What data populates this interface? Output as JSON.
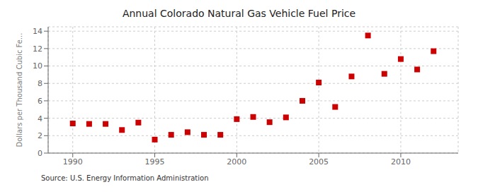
{
  "chart_data": {
    "type": "scatter",
    "title": "Annual Colorado Natural Gas Vehicle Fuel Price",
    "ylabel": "Dollars per Thousand Cubic Fe...",
    "source": "Source: U.S. Energy Information Administration",
    "x": [
      1990,
      1991,
      1992,
      1993,
      1994,
      1995,
      1996,
      1997,
      1998,
      1999,
      2000,
      2001,
      2002,
      2003,
      2004,
      2005,
      2006,
      2007,
      2008,
      2009,
      2010,
      2011,
      2012
    ],
    "values": [
      3.4,
      3.35,
      3.35,
      2.65,
      3.5,
      1.55,
      2.1,
      2.4,
      2.1,
      2.1,
      3.9,
      4.15,
      3.55,
      4.1,
      6.0,
      8.1,
      5.3,
      8.8,
      13.5,
      9.1,
      10.8,
      9.6,
      11.7
    ],
    "color": "#cc0000",
    "marker": "square",
    "xlim": [
      1988.5,
      2013.5
    ],
    "xticks": [
      1990,
      1995,
      2000,
      2005,
      2010
    ],
    "ylim": [
      0,
      14.5
    ],
    "yticks": [
      0,
      2,
      4,
      6,
      8,
      10,
      12,
      14
    ],
    "grid": true
  }
}
